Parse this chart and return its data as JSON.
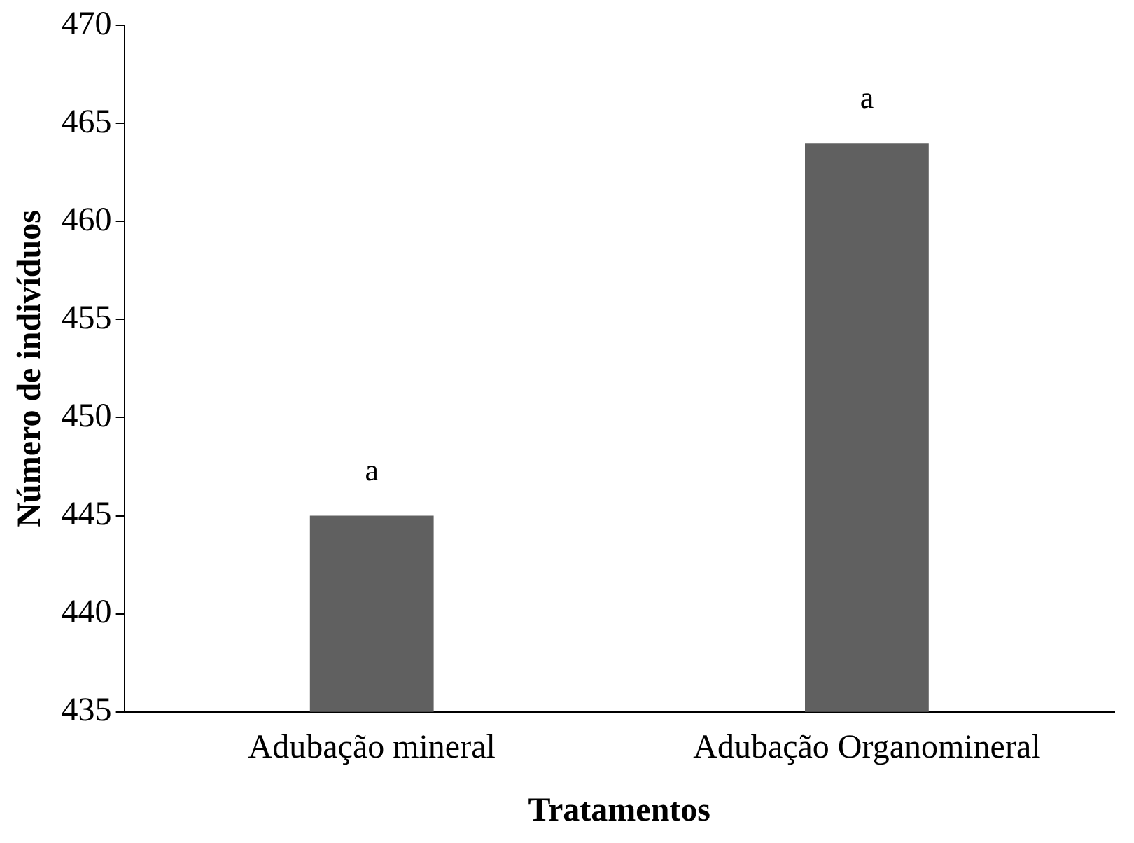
{
  "chart_data": {
    "type": "bar",
    "xlabel": "Tratamentos",
    "ylabel": "Número de indivíduos",
    "categories": [
      "Adubação mineral",
      "Adubação Organomineral"
    ],
    "values": [
      445,
      464
    ],
    "color": "#606060",
    "ylim": [
      435,
      470
    ],
    "yticks": [
      435,
      440,
      445,
      450,
      455,
      460,
      465,
      470
    ],
    "grid": false,
    "legend": false,
    "annotations": [
      {
        "text": "a",
        "x": "Adubação mineral",
        "y": 445
      },
      {
        "text": "a",
        "x": "Adubação Organomineral",
        "y": 464
      }
    ]
  }
}
